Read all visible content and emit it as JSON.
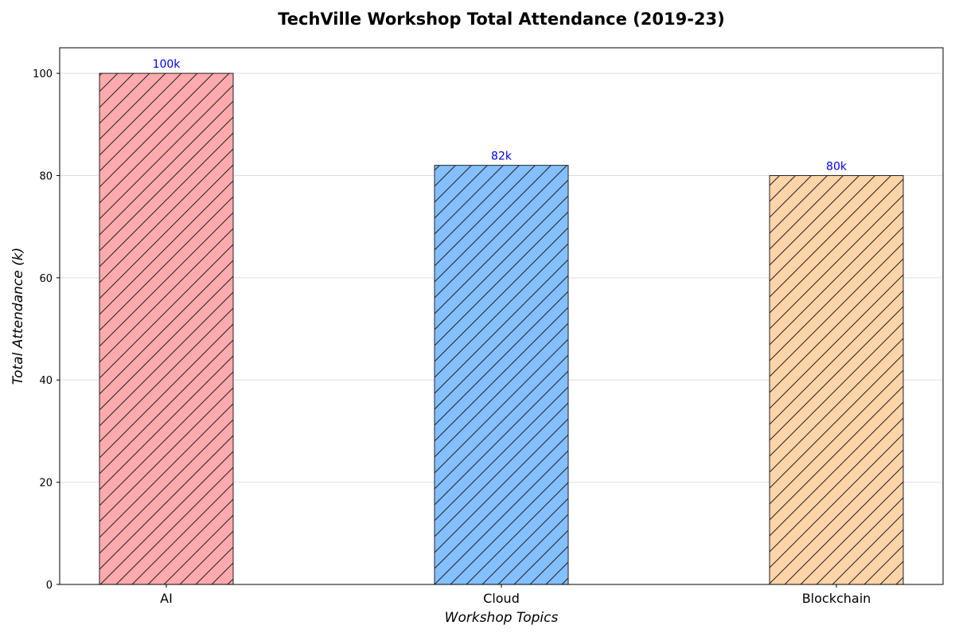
{
  "chart_data": {
    "type": "bar",
    "title": "TechVille Workshop Total Attendance (2019-23)",
    "xlabel": "Workshop Topics",
    "ylabel": "Total Attendance (k)",
    "categories": [
      "AI",
      "Cloud",
      "Blockchain"
    ],
    "values": [
      100,
      82,
      80
    ],
    "data_labels": [
      "100k",
      "82k",
      "80k"
    ],
    "bar_colors": [
      "#ffaaad",
      "#84bfff",
      "#ffd4a8"
    ],
    "hatch": "diagonal",
    "edge_color": "#222222",
    "data_label_color": "#0000ee",
    "ylim": [
      0,
      105
    ],
    "yticks": [
      0,
      20,
      40,
      60,
      80,
      100
    ],
    "grid": "horizontal",
    "legend": "none"
  }
}
